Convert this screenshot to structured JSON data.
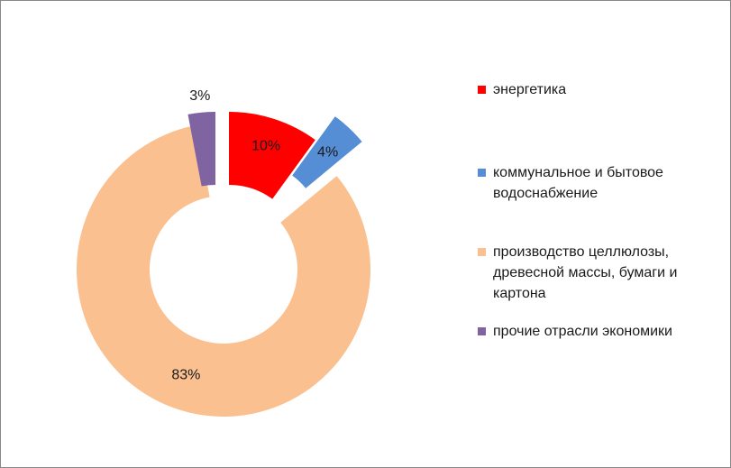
{
  "chart_data": {
    "type": "pie",
    "donut": true,
    "exploded": true,
    "title": "",
    "legend_position": "right",
    "categories": [
      "энергетика",
      "коммунальное и бытовое водоснабжение",
      "производство целлюлозы, древесной массы, бумаги и картона",
      "прочие отрасли экономики"
    ],
    "values": [
      10,
      4,
      83,
      3
    ],
    "labels": [
      "10%",
      "4%",
      "83%",
      "3%"
    ],
    "colors": [
      "#ff0000",
      "#558ed5",
      "#fac090",
      "#8064a2"
    ]
  },
  "legend": {
    "items": [
      {
        "label": "энергетика",
        "color": "#ff0000"
      },
      {
        "label": "коммунальное и бытовое водоснабжение",
        "color": "#558ed5"
      },
      {
        "label": "производство целлюлозы, древесной массы, бумаги и картона",
        "color": "#fac090"
      },
      {
        "label": "прочие отрасли экономики",
        "color": "#8064a2"
      }
    ]
  }
}
